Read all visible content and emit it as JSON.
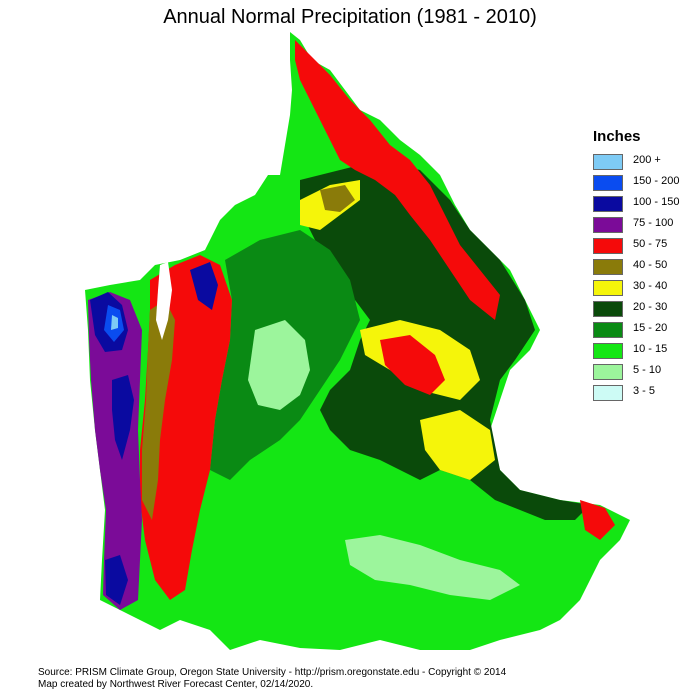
{
  "map": {
    "title": "Annual Normal Precipitation (1981 - 2010)"
  },
  "legend": {
    "title": "Inches",
    "items": [
      {
        "label": "200 +",
        "color": "#7ecbf5"
      },
      {
        "label": "150 - 200",
        "color": "#0a4cf0"
      },
      {
        "label": "100 - 150",
        "color": "#0a0aa0"
      },
      {
        "label": "75 - 100",
        "color": "#7b0b98"
      },
      {
        "label": "50 - 75",
        "color": "#f50a0a"
      },
      {
        "label": "40 - 50",
        "color": "#8a7b0a"
      },
      {
        "label": "30 - 40",
        "color": "#f5f50a"
      },
      {
        "label": "20 - 30",
        "color": "#0a4a0a"
      },
      {
        "label": "15 - 20",
        "color": "#0a8a14"
      },
      {
        "label": "10 - 15",
        "color": "#14e614"
      },
      {
        "label": "5 - 10",
        "color": "#9cf59c"
      },
      {
        "label": "3 - 5",
        "color": "#cdfbf5"
      }
    ]
  },
  "footer": {
    "source_line": "Source: PRISM Climate Group, Oregon State University - http://prism.oregonstate.edu - Copyright © 2014",
    "credit_line": "Map created by Northwest River Forecast Center, 02/14/2020."
  }
}
